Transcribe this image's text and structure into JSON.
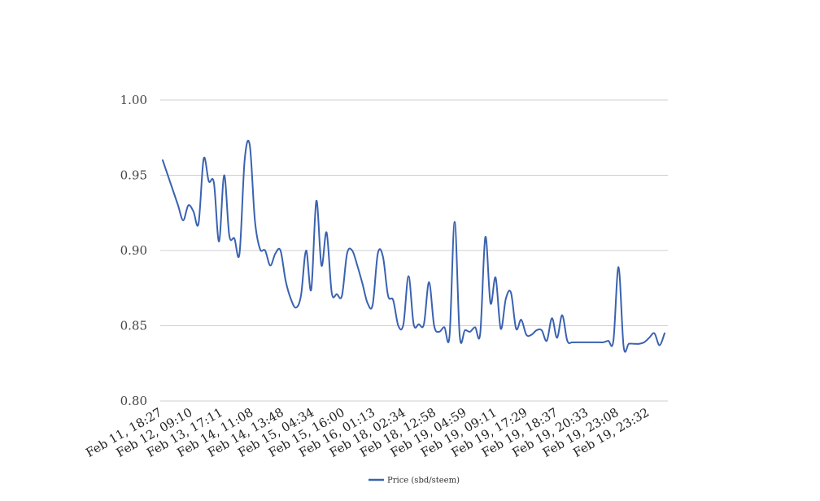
{
  "chart_data": {
    "type": "line",
    "title": "",
    "xlabel": "",
    "ylabel": "",
    "ylim": [
      0.8,
      1.0
    ],
    "yticks": [
      "0.80",
      "0.85",
      "0.90",
      "0.95",
      "1.00"
    ],
    "grid": "horizontal",
    "legend_position": "bottom",
    "x_tick_labels": [
      "Feb 11, 18:27",
      "Feb 12, 09:10",
      "Feb 13, 17:11",
      "Feb 14, 11:08",
      "Feb 14, 13:48",
      "Feb 15, 04:34",
      "Feb 15, 16:00",
      "Feb 16, 01:13",
      "Feb 18, 02:34",
      "Feb 18, 12:58",
      "Feb 19, 04:59",
      "Feb 19, 09:11",
      "Feb 19, 17:29",
      "Feb 19, 18:37",
      "Feb 19, 20:33",
      "Feb 19, 23:08",
      "Feb 19, 23:32"
    ],
    "series": [
      {
        "name": "Price (sbd/steem)",
        "color": "#3a62b0",
        "values": [
          0.96,
          0.95,
          0.94,
          0.93,
          0.92,
          0.93,
          0.926,
          0.918,
          0.961,
          0.946,
          0.945,
          0.906,
          0.95,
          0.91,
          0.908,
          0.898,
          0.96,
          0.97,
          0.92,
          0.901,
          0.9,
          0.89,
          0.898,
          0.9,
          0.88,
          0.868,
          0.862,
          0.87,
          0.9,
          0.874,
          0.933,
          0.89,
          0.912,
          0.872,
          0.871,
          0.87,
          0.898,
          0.9,
          0.89,
          0.878,
          0.865,
          0.864,
          0.898,
          0.896,
          0.87,
          0.867,
          0.85,
          0.851,
          0.883,
          0.851,
          0.851,
          0.851,
          0.879,
          0.85,
          0.846,
          0.849,
          0.843,
          0.919,
          0.843,
          0.847,
          0.846,
          0.849,
          0.845,
          0.909,
          0.865,
          0.882,
          0.848,
          0.868,
          0.872,
          0.848,
          0.854,
          0.844,
          0.844,
          0.847,
          0.847,
          0.84,
          0.855,
          0.842,
          0.857,
          0.84,
          0.839,
          0.839,
          0.839,
          0.839,
          0.839,
          0.839,
          0.839,
          0.84,
          0.84,
          0.889,
          0.836,
          0.838,
          0.838,
          0.838,
          0.839,
          0.842,
          0.845,
          0.837,
          0.845
        ]
      }
    ]
  }
}
